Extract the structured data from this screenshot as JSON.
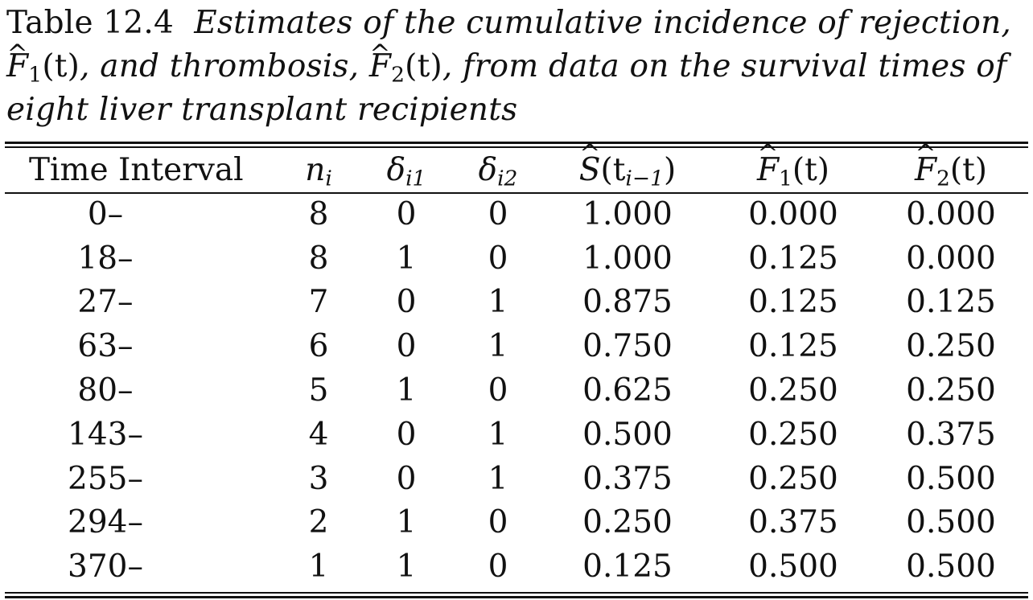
{
  "caption": {
    "label": "Table 12.4",
    "text_1": "Estimates of the cumulative incidence of rejection,",
    "f1_symbol": "F",
    "f1_sub": "1",
    "f1_arg": "(t)",
    "text_2": ", and thrombosis,",
    "f2_symbol": "F",
    "f2_sub": "2",
    "f2_arg": "(t)",
    "text_3": ", from data on the survival times of",
    "text_4": "eight liver transplant recipients"
  },
  "table": {
    "headers": {
      "time_interval": "Time Interval",
      "n": "n",
      "n_sub": "i",
      "d1": "δ",
      "d1_sub": "i1",
      "d2": "δ",
      "d2_sub": "i2",
      "s": "S",
      "s_arg_open": "(t",
      "s_arg_sub": "i−1",
      "s_arg_close": ")",
      "f1": "F",
      "f1_sub": "1",
      "f1_arg": "(t)",
      "f2": "F",
      "f2_sub": "2",
      "f2_arg": "(t)"
    },
    "rows": [
      {
        "interval": "0–",
        "n": "8",
        "d1": "0",
        "d2": "0",
        "s": "1.000",
        "f1": "0.000",
        "f2": "0.000"
      },
      {
        "interval": "18–",
        "n": "8",
        "d1": "1",
        "d2": "0",
        "s": "1.000",
        "f1": "0.125",
        "f2": "0.000"
      },
      {
        "interval": "27–",
        "n": "7",
        "d1": "0",
        "d2": "1",
        "s": "0.875",
        "f1": "0.125",
        "f2": "0.125"
      },
      {
        "interval": "63–",
        "n": "6",
        "d1": "0",
        "d2": "1",
        "s": "0.750",
        "f1": "0.125",
        "f2": "0.250"
      },
      {
        "interval": "80–",
        "n": "5",
        "d1": "1",
        "d2": "0",
        "s": "0.625",
        "f1": "0.250",
        "f2": "0.250"
      },
      {
        "interval": "143–",
        "n": "4",
        "d1": "0",
        "d2": "1",
        "s": "0.500",
        "f1": "0.250",
        "f2": "0.375"
      },
      {
        "interval": "255–",
        "n": "3",
        "d1": "0",
        "d2": "1",
        "s": "0.375",
        "f1": "0.250",
        "f2": "0.500"
      },
      {
        "interval": "294–",
        "n": "2",
        "d1": "1",
        "d2": "0",
        "s": "0.250",
        "f1": "0.375",
        "f2": "0.500"
      },
      {
        "interval": "370–",
        "n": "1",
        "d1": "1",
        "d2": "0",
        "s": "0.125",
        "f1": "0.500",
        "f2": "0.500"
      }
    ]
  }
}
